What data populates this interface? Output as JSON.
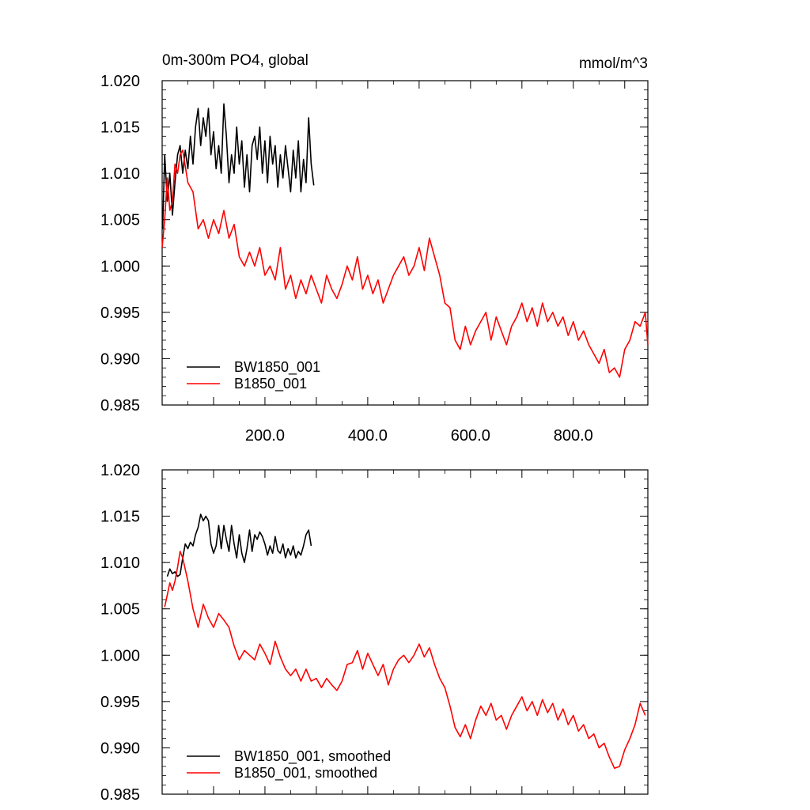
{
  "chart_data": [
    {
      "type": "line",
      "title": "0m-300m PO4, global",
      "units": "mmol/m^3",
      "xlim": [
        0,
        945
      ],
      "ylim": [
        0.985,
        1.02
      ],
      "x_ticks": [
        200.0,
        400.0,
        600.0,
        800.0
      ],
      "x_tick_labels": [
        "200.0",
        "400.0",
        "600.0",
        "800.0"
      ],
      "y_ticks": [
        0.985,
        0.99,
        0.995,
        1.0,
        1.005,
        1.01,
        1.015,
        1.02
      ],
      "y_tick_labels": [
        "0.985",
        "0.990",
        "0.995",
        "1.000",
        "1.005",
        "1.010",
        "1.015",
        "1.020"
      ],
      "legend_position": "bottom-left",
      "series": [
        {
          "name": "BW1850_001",
          "color": "#000000",
          "x": [
            1,
            5,
            10,
            15,
            20,
            25,
            30,
            35,
            40,
            45,
            50,
            55,
            60,
            65,
            70,
            75,
            80,
            85,
            90,
            95,
            100,
            105,
            110,
            115,
            120,
            125,
            130,
            135,
            140,
            145,
            150,
            155,
            160,
            165,
            170,
            175,
            180,
            185,
            190,
            195,
            200,
            205,
            210,
            215,
            220,
            225,
            230,
            235,
            240,
            245,
            250,
            255,
            260,
            265,
            270,
            275,
            280,
            285,
            290,
            295
          ],
          "values": [
            1.004,
            1.012,
            1.007,
            1.01,
            1.0055,
            1.009,
            1.012,
            1.013,
            1.01,
            1.0125,
            1.0105,
            1.014,
            1.011,
            1.015,
            1.017,
            1.013,
            1.016,
            1.014,
            1.017,
            1.012,
            1.0145,
            1.0105,
            1.013,
            1.01,
            1.0175,
            1.014,
            1.009,
            1.012,
            1.01,
            1.015,
            1.011,
            1.0135,
            1.0085,
            1.012,
            1.008,
            1.013,
            1.014,
            1.0115,
            1.015,
            1.01,
            1.0135,
            1.009,
            1.014,
            1.011,
            1.013,
            1.0085,
            1.012,
            1.0095,
            1.013,
            1.0105,
            1.008,
            1.0125,
            1.0095,
            1.0135,
            1.008,
            1.0115,
            1.009,
            1.016,
            1.011,
            1.0087
          ]
        },
        {
          "name": "B1850_001",
          "color": "#ff0000",
          "x": [
            0,
            5,
            10,
            15,
            20,
            25,
            30,
            35,
            40,
            50,
            60,
            70,
            80,
            90,
            100,
            110,
            120,
            130,
            140,
            150,
            160,
            170,
            180,
            190,
            200,
            210,
            220,
            230,
            240,
            250,
            260,
            270,
            280,
            290,
            300,
            310,
            320,
            330,
            340,
            350,
            360,
            370,
            380,
            390,
            400,
            410,
            420,
            430,
            440,
            450,
            460,
            470,
            480,
            490,
            500,
            510,
            520,
            530,
            540,
            550,
            560,
            570,
            580,
            590,
            600,
            610,
            620,
            630,
            640,
            650,
            660,
            670,
            680,
            690,
            700,
            710,
            720,
            730,
            740,
            750,
            760,
            770,
            780,
            790,
            800,
            810,
            820,
            830,
            840,
            850,
            860,
            870,
            880,
            890,
            900,
            910,
            920,
            930,
            940,
            945
          ],
          "values": [
            1.002,
            1.005,
            1.0095,
            1.006,
            1.007,
            1.011,
            1.01,
            1.012,
            1.0125,
            1.009,
            1.008,
            1.004,
            1.005,
            1.003,
            1.005,
            1.0035,
            1.006,
            1.003,
            1.0045,
            1.001,
            1.0,
            1.0015,
            1.0,
            1.002,
            0.999,
            1.0,
            0.9985,
            1.002,
            0.9975,
            0.999,
            0.9965,
            0.9985,
            0.997,
            0.999,
            0.9975,
            0.996,
            0.999,
            0.9975,
            0.9965,
            0.998,
            1.0,
            0.9985,
            1.001,
            0.9975,
            0.999,
            0.997,
            0.9985,
            0.996,
            0.9975,
            0.999,
            1.0,
            1.001,
            0.999,
            1.0,
            1.002,
            0.9995,
            1.003,
            1.001,
            0.999,
            0.996,
            0.9955,
            0.992,
            0.991,
            0.9935,
            0.9915,
            0.993,
            0.994,
            0.995,
            0.992,
            0.9945,
            0.993,
            0.9915,
            0.9935,
            0.9945,
            0.996,
            0.994,
            0.9955,
            0.9935,
            0.996,
            0.994,
            0.995,
            0.9935,
            0.9945,
            0.9925,
            0.994,
            0.992,
            0.993,
            0.9915,
            0.9905,
            0.9895,
            0.991,
            0.9885,
            0.989,
            0.988,
            0.991,
            0.992,
            0.994,
            0.9935,
            0.995,
            0.9915
          ]
        }
      ]
    },
    {
      "type": "line",
      "xlim": [
        0,
        945
      ],
      "ylim": [
        0.985,
        1.02
      ],
      "y_ticks": [
        0.985,
        0.99,
        0.995,
        1.0,
        1.005,
        1.01,
        1.015,
        1.02
      ],
      "y_tick_labels": [
        "0.985",
        "0.990",
        "0.995",
        "1.000",
        "1.005",
        "1.010",
        "1.015",
        "1.020"
      ],
      "legend_position": "bottom-left",
      "series": [
        {
          "name": "BW1850_001, smoothed",
          "color": "#000000",
          "x": [
            10,
            15,
            20,
            25,
            30,
            35,
            40,
            45,
            50,
            55,
            60,
            65,
            70,
            75,
            80,
            85,
            90,
            95,
            100,
            105,
            110,
            115,
            120,
            125,
            130,
            135,
            140,
            145,
            150,
            155,
            160,
            165,
            170,
            175,
            180,
            185,
            190,
            195,
            200,
            205,
            210,
            215,
            220,
            225,
            230,
            235,
            240,
            245,
            250,
            255,
            260,
            265,
            270,
            275,
            280,
            285,
            290
          ],
          "values": [
            1.0085,
            1.0093,
            1.0088,
            1.009,
            1.0085,
            1.0087,
            1.0105,
            1.012,
            1.0115,
            1.0122,
            1.0118,
            1.013,
            1.0138,
            1.0152,
            1.0145,
            1.015,
            1.0145,
            1.012,
            1.011,
            1.0118,
            1.014,
            1.0115,
            1.014,
            1.0125,
            1.0112,
            1.014,
            1.012,
            1.0105,
            1.013,
            1.011,
            1.01,
            1.0115,
            1.0135,
            1.0112,
            1.013,
            1.0125,
            1.0133,
            1.0128,
            1.012,
            1.0108,
            1.0118,
            1.011,
            1.0128,
            1.0113,
            1.011,
            1.012,
            1.0105,
            1.0115,
            1.0108,
            1.0118,
            1.0105,
            1.0112,
            1.0108,
            1.0118,
            1.013,
            1.0135,
            1.0118
          ]
        },
        {
          "name": "B1850_001, smoothed",
          "color": "#ff0000",
          "x": [
            5,
            10,
            15,
            20,
            25,
            30,
            35,
            40,
            50,
            60,
            70,
            80,
            90,
            100,
            110,
            120,
            130,
            140,
            150,
            160,
            170,
            180,
            190,
            200,
            210,
            220,
            230,
            240,
            250,
            260,
            270,
            280,
            290,
            300,
            310,
            320,
            330,
            340,
            350,
            360,
            370,
            380,
            390,
            400,
            410,
            420,
            430,
            440,
            450,
            460,
            470,
            480,
            490,
            500,
            510,
            520,
            530,
            540,
            550,
            560,
            570,
            580,
            590,
            600,
            610,
            620,
            630,
            640,
            650,
            660,
            670,
            680,
            690,
            700,
            710,
            720,
            730,
            740,
            750,
            760,
            770,
            780,
            790,
            800,
            810,
            820,
            830,
            840,
            850,
            860,
            870,
            880,
            890,
            900,
            910,
            920,
            930,
            940
          ],
          "values": [
            1.0052,
            1.0065,
            1.0078,
            1.007,
            1.008,
            1.0095,
            1.0112,
            1.0105,
            1.008,
            1.005,
            1.003,
            1.0055,
            1.004,
            1.003,
            1.0045,
            1.0038,
            1.003,
            1.001,
            0.9995,
            1.0005,
            1.0,
            0.9995,
            1.0012,
            1.0002,
            0.999,
            1.0015,
            0.9998,
            0.9985,
            0.9978,
            0.9985,
            0.9972,
            0.9985,
            0.9972,
            0.9975,
            0.9965,
            0.9975,
            0.9968,
            0.9962,
            0.9972,
            0.999,
            0.9992,
            1.0005,
            0.9985,
            1.0002,
            0.999,
            0.9978,
            0.999,
            0.9968,
            0.9985,
            0.9995,
            1.0,
            0.9992,
            1.0,
            1.0012,
            0.9998,
            1.0008,
            0.999,
            0.9975,
            0.9965,
            0.9945,
            0.9922,
            0.9912,
            0.9925,
            0.991,
            0.993,
            0.9945,
            0.9935,
            0.9948,
            0.993,
            0.9935,
            0.992,
            0.9935,
            0.9945,
            0.9955,
            0.994,
            0.995,
            0.9935,
            0.9952,
            0.9938,
            0.9948,
            0.993,
            0.9942,
            0.9925,
            0.9935,
            0.9918,
            0.9925,
            0.991,
            0.9915,
            0.99,
            0.9905,
            0.989,
            0.9878,
            0.988,
            0.9898,
            0.991,
            0.9925,
            0.9948,
            0.9935
          ]
        }
      ]
    }
  ]
}
